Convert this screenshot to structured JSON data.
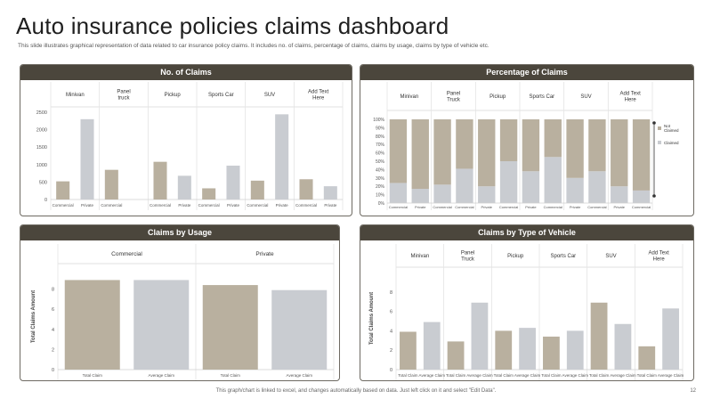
{
  "page": {
    "title": "Auto insurance policies claims dashboard",
    "subtitle": "This slide illustrates graphical representation of data related to car insurance policy claims. It includes no. of claims, percentage of claims, claims by usage, claims by type of vehicle etc.",
    "footer": "This graph/chart is linked to excel, and changes automatically based on data. Just left click on it and select \"Edit Data\".",
    "page_number": "12"
  },
  "colors": {
    "commercial": "#b9b09f",
    "private": "#c9ccd1",
    "header": "#4b463c",
    "grid": "#e6e6e6"
  },
  "chart_data": [
    {
      "type": "bar",
      "title": "No. of Claims",
      "groups": [
        "Minivan",
        "Panel truck",
        "Pickup",
        "Sports Car",
        "SUV",
        "Add Text Here"
      ],
      "categories": [
        "Commercial",
        "Private",
        "Commercial",
        "Private",
        "Commercial",
        "Private",
        "Commercial",
        "Private",
        "Commercial",
        "Private",
        "Commercial",
        "Private"
      ],
      "category_labels": [
        "Commercial",
        "Private",
        "Commercial",
        "",
        "Commercial",
        "Private",
        "Commercial",
        "Private",
        "Commercial",
        "Private",
        "Commercial",
        "Private"
      ],
      "values": [
        520,
        2300,
        850,
        0,
        1080,
        680,
        320,
        970,
        540,
        2440,
        580,
        380
      ],
      "yticks": [
        "0",
        "500",
        "1000",
        "1500",
        "2000",
        "2500"
      ],
      "ylim": [
        0,
        2500
      ],
      "grid": false
    },
    {
      "type": "bar",
      "stacked": true,
      "title": "Percentage of Claims",
      "groups": [
        "Minivan",
        "Panel Truck",
        "Pickup",
        "Sports Car",
        "SUV",
        "Add Text Here"
      ],
      "categories": [
        "Commercial",
        "Private",
        "Commercial",
        "Commercial",
        "Private",
        "Commercial",
        "Private",
        "Commercial",
        "Private",
        "Commercial",
        "Private",
        "Commercial"
      ],
      "series": [
        {
          "name": "Claimed",
          "values": [
            24,
            17,
            22,
            41,
            20,
            50,
            38,
            55,
            30,
            38,
            20,
            15
          ]
        },
        {
          "name": "Not Claimed",
          "values": [
            76,
            83,
            78,
            59,
            80,
            50,
            62,
            45,
            70,
            62,
            80,
            85
          ]
        }
      ],
      "yticks": [
        "0%",
        "10%",
        "20%",
        "30%",
        "40%",
        "50%",
        "60%",
        "70%",
        "80%",
        "90%",
        "100%"
      ],
      "ylim": [
        0,
        100
      ],
      "legend": "right",
      "legend_labels": [
        "Not Claimed",
        "Claimed"
      ]
    },
    {
      "type": "bar",
      "title": "Claims by Usage",
      "groups": [
        "Commercial",
        "Private"
      ],
      "categories": [
        "Total Claim",
        "Average Claim",
        "Total Claim",
        "Average Claim"
      ],
      "values": [
        8.9,
        8.9,
        8.4,
        7.9
      ],
      "yticks": [
        "0",
        "2",
        "4",
        "6",
        "8"
      ],
      "ylim": [
        0,
        10
      ],
      "ylabel": "Total Claims Amount"
    },
    {
      "type": "bar",
      "title": "Claims by Type of Vehicle",
      "groups": [
        "Minivan",
        "Panel Truck",
        "Pickup",
        "Sports Car",
        "SUV",
        "Add Text Here"
      ],
      "categories": [
        "Total Claim",
        "Average Claim",
        "Total Claim",
        "Average Claim",
        "Total Claim",
        "Average Claim",
        "Total Claim",
        "Average Claim",
        "Total Claim",
        "Average Claim",
        "Total Claim",
        "Average Claim"
      ],
      "values": [
        3.9,
        4.9,
        2.9,
        6.9,
        4.0,
        4.3,
        3.4,
        4.0,
        6.9,
        4.7,
        2.4,
        6.3
      ],
      "yticks": [
        "0",
        "2",
        "4",
        "6",
        "8"
      ],
      "ylim": [
        0,
        10
      ],
      "ylabel": "Total Claims Amount"
    }
  ]
}
